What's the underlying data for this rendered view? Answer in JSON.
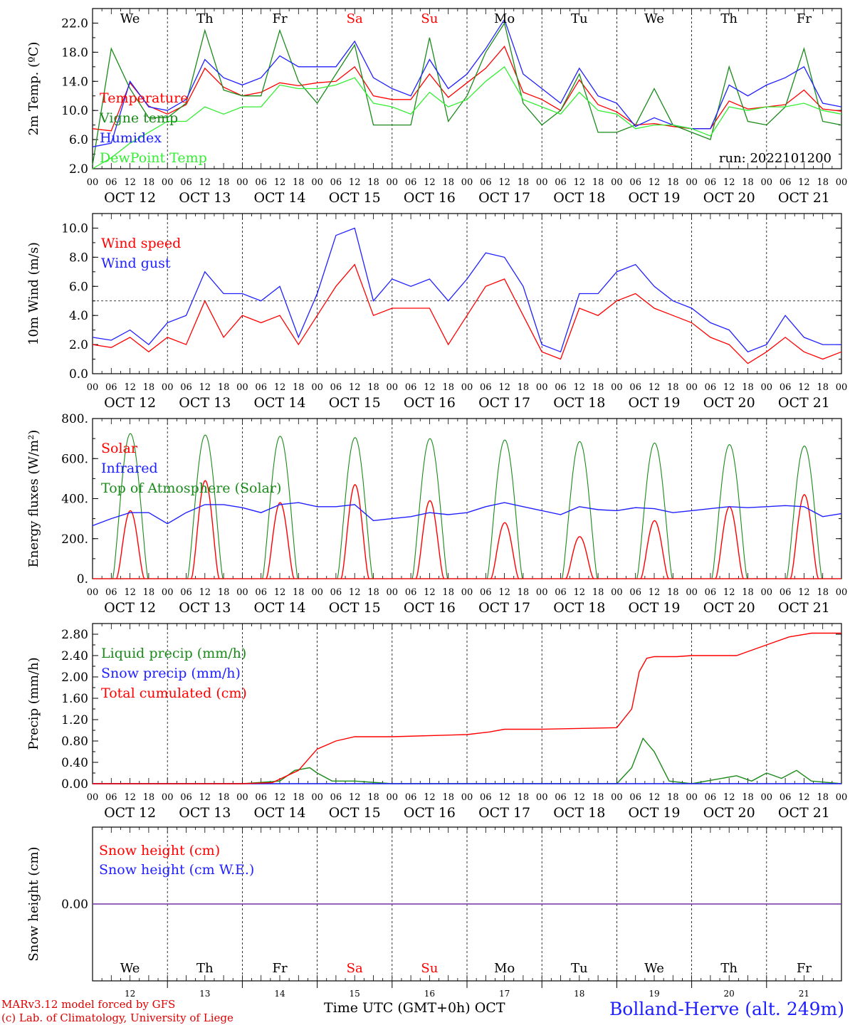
{
  "header": {
    "run_label": "run: 2022101200",
    "station": "Bolland-Herve (alt. 249m)",
    "credit_line1": "MARv3.12 model forced by GFS",
    "credit_line2": "(c) Lab. of Climatology, University of Liege",
    "x_axis_label": "Time UTC (GMT+0h) OCT"
  },
  "time_axis": {
    "hour_ticks": [
      "00",
      "06",
      "12",
      "18"
    ],
    "final_tick": "00",
    "dates": [
      "OCT 12",
      "OCT 13",
      "OCT 14",
      "OCT 15",
      "OCT 16",
      "OCT 17",
      "OCT 18",
      "OCT 19",
      "OCT 20",
      "OCT 21"
    ],
    "weekdays": [
      "We",
      "Th",
      "Fr",
      "Sa",
      "Su",
      "Mo",
      "Tu",
      "We",
      "Th",
      "Fr"
    ],
    "weekday_colors": [
      "#000000",
      "#000000",
      "#000000",
      "#ff0000",
      "#ff0000",
      "#000000",
      "#000000",
      "#000000",
      "#000000",
      "#000000"
    ],
    "day_numbers": [
      "12",
      "13",
      "14",
      "15",
      "16",
      "17",
      "18",
      "19",
      "20",
      "21"
    ]
  },
  "colors": {
    "red": "#ff0000",
    "dark_green": "#1a8a1a",
    "blue": "#2020ff",
    "light_green": "#33ee33",
    "purple": "#7030a0"
  },
  "chart_data": [
    {
      "type": "line",
      "ylabel": "2m Temp. (ºC)",
      "ylim": [
        2,
        24
      ],
      "yticks": [
        "2.0",
        "6.0",
        "10.0",
        "14.0",
        "18.0",
        "22.0"
      ],
      "x_unit": "days since OCT 12 00 UTC",
      "x": [
        0,
        0.25,
        0.5,
        0.75,
        1,
        1.25,
        1.5,
        1.75,
        2,
        2.25,
        2.5,
        2.75,
        3,
        3.25,
        3.5,
        3.75,
        4,
        4.25,
        4.5,
        4.75,
        5,
        5.25,
        5.5,
        5.75,
        6,
        6.25,
        6.5,
        6.75,
        7,
        7.25,
        7.5,
        7.75,
        8,
        8.25,
        8.5,
        8.75,
        9,
        9.25,
        9.5,
        9.75,
        10
      ],
      "series": [
        {
          "name": "Temperature",
          "color": "#ff0000",
          "values": [
            7.5,
            7.2,
            13.8,
            10.6,
            9.5,
            10.8,
            15.8,
            13.2,
            12.0,
            12.5,
            13.8,
            13.4,
            13.8,
            14.0,
            16.0,
            12.0,
            11.5,
            11.5,
            15.0,
            11.8,
            13.8,
            15.8,
            18.8,
            12.5,
            11.5,
            10.0,
            14.2,
            10.8,
            9.8,
            8.0,
            8.2,
            7.8,
            7.5,
            7.5,
            11.3,
            10.2,
            10.5,
            10.8,
            12.8,
            10.2,
            9.9
          ]
        },
        {
          "name": "Vigne temp",
          "color": "#1a8a1a",
          "values": [
            2.5,
            18.5,
            13.0,
            9.0,
            9.0,
            11.0,
            21.0,
            12.8,
            12.0,
            12.0,
            21.0,
            14.0,
            11.0,
            15.0,
            19.0,
            8.0,
            8.0,
            8.0,
            20.0,
            8.5,
            12.0,
            18.0,
            22.0,
            11.0,
            8.0,
            10.0,
            15.0,
            7.0,
            7.0,
            8.0,
            13.0,
            8.0,
            7.0,
            6.0,
            16.0,
            8.5,
            8.0,
            10.5,
            18.5,
            8.5,
            8.0
          ]
        },
        {
          "name": "Humidex",
          "color": "#2020ff",
          "values": [
            5.0,
            5.5,
            14.0,
            10.5,
            10.0,
            11.5,
            17.0,
            14.5,
            13.5,
            14.5,
            17.5,
            16.0,
            16.0,
            16.0,
            19.5,
            14.5,
            13.0,
            12.0,
            17.0,
            13.0,
            15.0,
            18.5,
            22.5,
            15.0,
            13.0,
            11.0,
            15.8,
            12.0,
            11.0,
            7.8,
            9.0,
            8.0,
            7.5,
            7.5,
            13.5,
            12.0,
            13.5,
            14.5,
            16.0,
            11.0,
            10.5
          ]
        },
        {
          "name": "DewPoint Temp",
          "color": "#33ee33",
          "values": [
            2.0,
            3.5,
            5.5,
            7.0,
            8.5,
            8.5,
            10.5,
            9.5,
            10.5,
            10.5,
            13.5,
            13.0,
            13.0,
            13.5,
            14.5,
            11.0,
            10.5,
            9.5,
            12.5,
            10.5,
            11.5,
            14.0,
            16.0,
            11.5,
            10.5,
            9.5,
            12.5,
            10.0,
            9.5,
            7.5,
            8.0,
            8.0,
            7.5,
            6.5,
            10.5,
            10.0,
            10.5,
            10.5,
            11.0,
            10.0,
            9.5
          ]
        }
      ]
    },
    {
      "type": "line",
      "ylabel": "10m Wind (m/s)",
      "ylim": [
        0,
        11
      ],
      "yticks": [
        "0.0",
        "2.0",
        "4.0",
        "6.0",
        "8.0",
        "10.0"
      ],
      "reference_line": 5,
      "x": [
        0,
        0.25,
        0.5,
        0.75,
        1,
        1.25,
        1.5,
        1.75,
        2,
        2.25,
        2.5,
        2.75,
        3,
        3.25,
        3.5,
        3.75,
        4,
        4.25,
        4.5,
        4.75,
        5,
        5.25,
        5.5,
        5.75,
        6,
        6.25,
        6.5,
        6.75,
        7,
        7.25,
        7.5,
        7.75,
        8,
        8.25,
        8.5,
        8.75,
        9,
        9.25,
        9.5,
        9.75,
        10
      ],
      "series": [
        {
          "name": "Wind speed",
          "color": "#ff0000",
          "values": [
            2.0,
            1.8,
            2.5,
            1.5,
            2.5,
            2.0,
            5.0,
            2.5,
            4.0,
            3.5,
            4.0,
            2.0,
            4.0,
            6.0,
            7.5,
            4.0,
            4.5,
            4.5,
            4.5,
            2.0,
            4.0,
            6.0,
            6.5,
            4.0,
            1.5,
            1.0,
            4.5,
            4.0,
            5.0,
            5.5,
            4.5,
            4.0,
            3.5,
            2.5,
            2.0,
            0.7,
            1.5,
            2.5,
            1.5,
            1.0,
            1.5
          ]
        },
        {
          "name": "Wind gust",
          "color": "#2020ff",
          "values": [
            2.5,
            2.3,
            3.0,
            2.0,
            3.5,
            4.0,
            7.0,
            5.5,
            5.5,
            5.0,
            6.0,
            2.5,
            5.5,
            9.5,
            10.0,
            5.0,
            6.5,
            6.0,
            6.5,
            5.0,
            6.5,
            8.3,
            8.0,
            6.0,
            2.0,
            1.5,
            5.5,
            5.5,
            7.0,
            7.5,
            6.0,
            5.0,
            4.5,
            3.5,
            3.0,
            1.5,
            2.0,
            4.0,
            2.5,
            2.0,
            2.0
          ]
        }
      ]
    },
    {
      "type": "line",
      "ylabel": "Energy fluxes (W/m²)",
      "ylim": [
        0,
        800
      ],
      "yticks": [
        "0.",
        "200.",
        "400.",
        "600.",
        "800."
      ],
      "series": [
        {
          "name": "Solar",
          "color": "#ff0000",
          "day_peaks": [
            340,
            490,
            380,
            470,
            390,
            280,
            210,
            290,
            360,
            420
          ]
        },
        {
          "name": "Infrared",
          "color": "#2020ff",
          "x": [
            0,
            0.25,
            0.5,
            0.75,
            1,
            1.25,
            1.5,
            1.75,
            2,
            2.25,
            2.5,
            2.75,
            3,
            3.25,
            3.5,
            3.75,
            4,
            4.25,
            4.5,
            4.75,
            5,
            5.25,
            5.5,
            5.75,
            6,
            6.25,
            6.5,
            6.75,
            7,
            7.25,
            7.5,
            7.75,
            8,
            8.25,
            8.5,
            8.75,
            9,
            9.25,
            9.5,
            9.75,
            10
          ],
          "values": [
            265,
            300,
            330,
            330,
            275,
            330,
            370,
            370,
            355,
            330,
            370,
            380,
            360,
            360,
            370,
            290,
            300,
            310,
            330,
            320,
            330,
            360,
            380,
            360,
            340,
            320,
            360,
            345,
            340,
            355,
            350,
            330,
            340,
            350,
            360,
            355,
            360,
            365,
            360,
            310,
            325
          ]
        },
        {
          "name": "Top of Atmosphere (Solar)",
          "color": "#1a8a1a",
          "day_peaks": [
            725,
            718,
            712,
            705,
            700,
            693,
            685,
            678,
            670,
            663
          ]
        }
      ]
    },
    {
      "type": "line",
      "ylabel": "Precip (mm/h)",
      "ylim": [
        0,
        3.0
      ],
      "yticks": [
        "0.00",
        "0.40",
        "0.80",
        "1.20",
        "1.60",
        "2.00",
        "2.40",
        "2.80"
      ],
      "series": [
        {
          "name": "Liquid precip (mm/h)",
          "color": "#1a8a1a",
          "x": [
            0,
            1,
            2,
            2.5,
            2.7,
            2.9,
            3.0,
            3.2,
            3.5,
            4,
            5,
            6,
            7,
            7.2,
            7.35,
            7.5,
            7.7,
            8,
            8.6,
            8.8,
            9,
            9.2,
            9.4,
            9.6,
            10
          ],
          "values": [
            0,
            0,
            0,
            0.05,
            0.25,
            0.3,
            0.2,
            0.05,
            0.05,
            0,
            0,
            0,
            0,
            0.3,
            0.85,
            0.6,
            0.05,
            0,
            0.15,
            0.05,
            0.2,
            0.1,
            0.25,
            0.05,
            0
          ]
        },
        {
          "name": "Snow precip (mm/h)",
          "color": "#2020ff",
          "x": [
            0,
            10
          ],
          "values": [
            0,
            0
          ]
        },
        {
          "name": "Total cumulated (cm)",
          "color": "#ff0000",
          "x": [
            0,
            1,
            2,
            2.4,
            2.75,
            3,
            3.25,
            3.5,
            4,
            5,
            5.3,
            5.5,
            6,
            7,
            7.2,
            7.3,
            7.4,
            7.5,
            7.8,
            8,
            8.6,
            8.8,
            9,
            9.3,
            9.6,
            10
          ],
          "values": [
            0,
            0,
            0,
            0.02,
            0.25,
            0.65,
            0.8,
            0.88,
            0.88,
            0.92,
            0.97,
            1.02,
            1.02,
            1.05,
            1.4,
            2.1,
            2.35,
            2.38,
            2.38,
            2.4,
            2.4,
            2.5,
            2.6,
            2.75,
            2.82,
            2.82
          ]
        }
      ]
    },
    {
      "type": "line",
      "ylabel": "Snow height (cm)",
      "yticks": [
        "0.00"
      ],
      "series": [
        {
          "name": "Snow height (cm)",
          "color": "#ff0000",
          "x": [
            0,
            10
          ],
          "values": [
            0,
            0
          ]
        },
        {
          "name": "Snow height (cm W.E.)",
          "color": "#2020ff",
          "x": [
            0,
            10
          ],
          "values": [
            0,
            0
          ]
        }
      ]
    }
  ]
}
